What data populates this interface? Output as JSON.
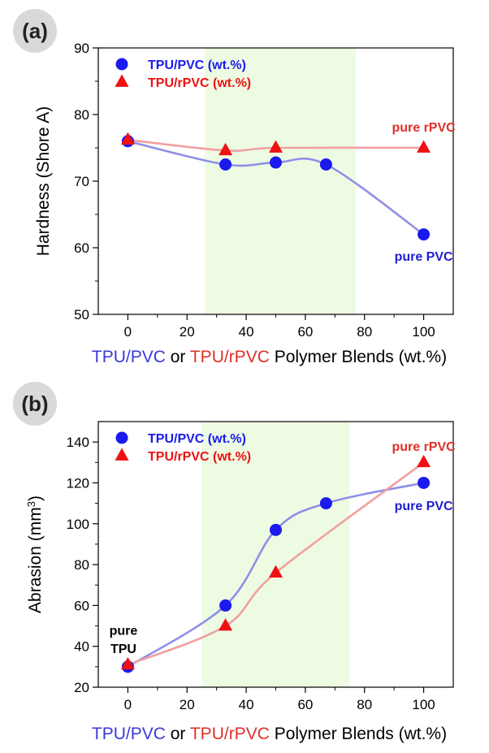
{
  "chart_data": [
    {
      "type": "line",
      "panel_label": "(a)",
      "title": "",
      "xlabel_parts": [
        {
          "text": "TPU/PVC",
          "color": "#3a3ad8"
        },
        {
          "text": " or ",
          "color": "#000000"
        },
        {
          "text": "TPU/rPVC",
          "color": "#e0302a"
        },
        {
          "text": " Polymer Blends (wt.%)",
          "color": "#000000"
        }
      ],
      "ylabel": "Hardness (Shore A)",
      "ylabel_sup": "",
      "ylabel_after": "",
      "xlim": [
        -10,
        110
      ],
      "ylim": [
        50,
        90
      ],
      "x_ticks": [
        0,
        20,
        40,
        60,
        80,
        100
      ],
      "y_ticks": [
        50,
        60,
        70,
        80,
        90
      ],
      "highlight_range": [
        26,
        77
      ],
      "legend_position": "top-left",
      "series": [
        {
          "name": "TPU/PVC (wt.%)",
          "marker": "circle",
          "color": "#1a1aee",
          "line_color": "#8f8fe8",
          "x": [
            0,
            33,
            50,
            67,
            100
          ],
          "y": [
            76,
            72.5,
            72.8,
            72.5,
            62
          ]
        },
        {
          "name": "TPU/rPVC (wt.%)",
          "marker": "triangle",
          "color": "#ee1111",
          "line_color": "#f0a0a0",
          "x": [
            0,
            33,
            50,
            100
          ],
          "y": [
            76.2,
            74.6,
            75,
            75
          ]
        }
      ],
      "annotations": [
        {
          "text": "pure rPVC",
          "color": "#e0302a",
          "x": 100,
          "y": 78.2
        },
        {
          "text": "pure PVC",
          "color": "#2020d0",
          "x": 100,
          "y": 58.8
        }
      ]
    },
    {
      "type": "line",
      "panel_label": "(b)",
      "title": "",
      "xlabel_parts": [
        {
          "text": "TPU/PVC",
          "color": "#3a3ad8"
        },
        {
          "text": " or ",
          "color": "#000000"
        },
        {
          "text": "TPU/rPVC",
          "color": "#e0302a"
        },
        {
          "text": " Polymer Blends (wt.%)",
          "color": "#000000"
        }
      ],
      "ylabel": "Abrasion (mm",
      "ylabel_sup": "3",
      "ylabel_after": ")",
      "xlim": [
        -10,
        110
      ],
      "ylim": [
        20,
        150
      ],
      "x_ticks": [
        0,
        20,
        40,
        60,
        80,
        100
      ],
      "y_ticks": [
        20,
        40,
        60,
        80,
        100,
        120,
        140
      ],
      "highlight_range": [
        25,
        75
      ],
      "legend_position": "top-left",
      "series": [
        {
          "name": "TPU/PVC (wt.%)",
          "marker": "circle",
          "color": "#1a1aee",
          "line_color": "#8f8fe8",
          "x": [
            0,
            33,
            50,
            67,
            100
          ],
          "y": [
            30,
            60,
            97,
            110,
            120
          ]
        },
        {
          "name": "TPU/rPVC (wt.%)",
          "marker": "triangle",
          "color": "#ee1111",
          "line_color": "#f0a0a0",
          "x": [
            0,
            33,
            50,
            100
          ],
          "y": [
            31,
            50,
            76,
            130
          ]
        }
      ],
      "annotations": [
        {
          "text": "pure rPVC",
          "color": "#e0302a",
          "x": 100,
          "y": 138
        },
        {
          "text": "pure PVC",
          "color": "#2020d0",
          "x": 100,
          "y": 109
        },
        {
          "text": "pure",
          "color": "#000000",
          "x": -1.5,
          "y": 48
        },
        {
          "text": "TPU",
          "color": "#000000",
          "x": -1.5,
          "y": 39
        }
      ]
    }
  ]
}
